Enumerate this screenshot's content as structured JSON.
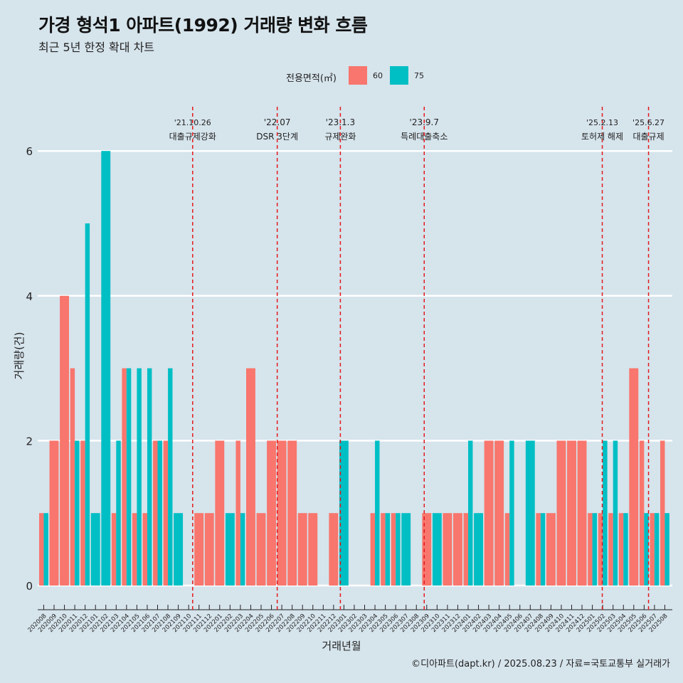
{
  "header": {
    "title": "가경 형석1 아파트(1992) 거래량 변화 흐름",
    "subtitle": "최근 5년 한정 확대 차트"
  },
  "legend": {
    "title": "전용면적(㎡)",
    "items": [
      {
        "label": "60",
        "color": "#f8766d"
      },
      {
        "label": "75",
        "color": "#00bfc4"
      }
    ]
  },
  "caption": "©디아파트(dapt.kr) / 2025.08.23 / 자료=국토교통부 실거래가",
  "chart_data": {
    "type": "bar",
    "title": "가경 형석1 아파트(1992) 거래량 변화 흐름",
    "subtitle": "최근 5년 한정 확대 차트",
    "xlabel": "거래년월",
    "ylabel": "거래량(건)",
    "ylim": [
      0,
      6
    ],
    "yticks": [
      0,
      2,
      4,
      6
    ],
    "grid": "horizontal",
    "legend_position": "top",
    "categories": [
      "202008",
      "202009",
      "202010",
      "202011",
      "202012",
      "202101",
      "202102",
      "202103",
      "202104",
      "202105",
      "202106",
      "202107",
      "202108",
      "202109",
      "202110",
      "202111",
      "202112",
      "202201",
      "202202",
      "202203",
      "202204",
      "202205",
      "202206",
      "202207",
      "202208",
      "202209",
      "202210",
      "202211",
      "202212",
      "202301",
      "202302",
      "202303",
      "202304",
      "202305",
      "202306",
      "202307",
      "202308",
      "202309",
      "202310",
      "202311",
      "202312",
      "202401",
      "202402",
      "202403",
      "202404",
      "202405",
      "202406",
      "202407",
      "202408",
      "202409",
      "202410",
      "202411",
      "202412",
      "202501",
      "202502",
      "202503",
      "202504",
      "202505",
      "202506",
      "202507",
      "202508"
    ],
    "series": [
      {
        "name": "60",
        "color": "#f8766d",
        "values": [
          1,
          2,
          4,
          3,
          2,
          0,
          0,
          1,
          3,
          1,
          1,
          2,
          2,
          0,
          0,
          1,
          1,
          2,
          0,
          2,
          3,
          1,
          2,
          2,
          2,
          1,
          1,
          0,
          1,
          0,
          0,
          0,
          1,
          1,
          1,
          0,
          0,
          1,
          0,
          1,
          1,
          1,
          0,
          2,
          2,
          1,
          0,
          0,
          1,
          1,
          2,
          2,
          2,
          1,
          1,
          1,
          1,
          3,
          2,
          1,
          2
        ]
      },
      {
        "name": "75",
        "color": "#00bfc4",
        "values": [
          1,
          0,
          0,
          2,
          5,
          1,
          6,
          2,
          3,
          3,
          3,
          2,
          3,
          1,
          0,
          0,
          0,
          0,
          1,
          1,
          0,
          0,
          0,
          0,
          0,
          0,
          0,
          0,
          0,
          2,
          0,
          0,
          2,
          1,
          1,
          1,
          0,
          0,
          1,
          0,
          0,
          2,
          1,
          0,
          0,
          2,
          0,
          2,
          1,
          0,
          0,
          0,
          0,
          1,
          2,
          2,
          1,
          0,
          1,
          1,
          1
        ]
      }
    ],
    "annotations": [
      {
        "date": "'21.10.26",
        "label": "대출규제강화",
        "category": "202110",
        "position": 0.83
      },
      {
        "date": "'22.07",
        "label": "DSR 3단계",
        "category": "202207",
        "position": 0.0
      },
      {
        "date": "'23.1.3",
        "label": "규제완화",
        "category": "202301",
        "position": 0.1
      },
      {
        "date": "'23.9.7",
        "label": "특례대출축소",
        "category": "202309",
        "position": 0.2
      },
      {
        "date": "'25.2.13",
        "label": "토허제 해제",
        "category": "202502",
        "position": 0.4
      },
      {
        "date": "'25.6.27",
        "label": "대출규제",
        "category": "202506",
        "position": 0.87
      }
    ]
  }
}
